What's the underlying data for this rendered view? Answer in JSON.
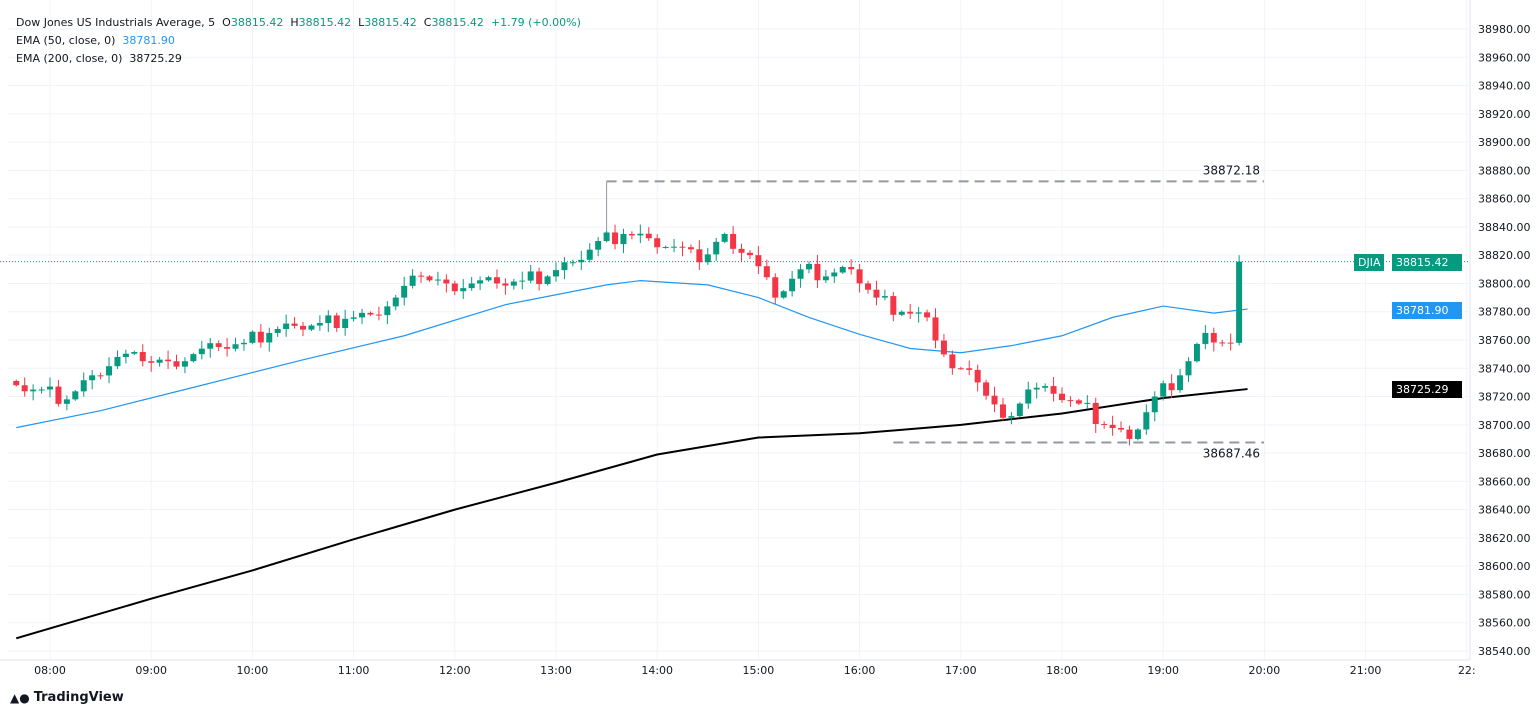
{
  "legend": {
    "title": "Dow Jones US Industrials Average, 5",
    "o_label": "O",
    "o": "38815.42",
    "h_label": "H",
    "h": "38815.42",
    "l_label": "L",
    "l": "38815.42",
    "c_label": "C",
    "c": "38815.42",
    "change": "+1.79 (+0.00%)",
    "ema50_label": "EMA (50, close, 0)",
    "ema50": "38781.90",
    "ema200_label": "EMA (200, close, 0)",
    "ema200": "38725.29"
  },
  "tags": {
    "symbol": "DJIA",
    "price": "38815.42",
    "ema50": "38781.90",
    "ema200": "38725.29"
  },
  "levels": {
    "high": "38872.18",
    "low": "38687.46"
  },
  "brand": "TradingView",
  "colors": {
    "up": "#089981",
    "down": "#f23645",
    "ema50": "#2196f3",
    "ema200": "#000000"
  },
  "chart_data": {
    "type": "candlestick",
    "title": "Dow Jones US Industrials Average, 5",
    "ylim": [
      38540,
      38980
    ],
    "yticks": [
      38540,
      38560,
      38580,
      38600,
      38620,
      38640,
      38660,
      38680,
      38700,
      38720,
      38740,
      38760,
      38780,
      38800,
      38820,
      38840,
      38860,
      38880,
      38900,
      38920,
      38940,
      38960,
      38980
    ],
    "xticks": [
      "08:00",
      "09:00",
      "10:00",
      "11:00",
      "12:00",
      "13:00",
      "14:00",
      "15:00",
      "16:00",
      "17:00",
      "18:00",
      "19:00",
      "20:00",
      "21:00",
      "22:"
    ],
    "close_anchors_15min": {
      "start": "07:40",
      "values": [
        38728,
        38725,
        38718,
        38735,
        38748,
        38745,
        38745,
        38750,
        38755,
        38758,
        38765,
        38770,
        38772,
        38775,
        38778,
        38790,
        38805,
        38800,
        38800,
        38800,
        38802,
        38805,
        38815,
        38830,
        38835,
        38832,
        38826,
        38815,
        38835,
        38820,
        38790,
        38810,
        38805,
        38810,
        38790,
        38780,
        38776,
        38740,
        38730,
        38705,
        38725,
        38722,
        38715,
        38700,
        38690,
        38720,
        38735,
        38765,
        38758,
        38778,
        38800,
        38810,
        38818,
        38850,
        38840,
        38810,
        38790,
        38768,
        38766,
        38772,
        38800,
        38815.42
      ]
    },
    "ema50": {
      "times": [
        "07:40",
        "08:30",
        "09:30",
        "10:30",
        "11:30",
        "12:30",
        "13:30",
        "13:50",
        "14:30",
        "15:00",
        "15:30",
        "16:00",
        "16:30",
        "17:00",
        "17:30",
        "18:00",
        "18:30",
        "19:00",
        "19:30",
        "19:50"
      ],
      "values": [
        38698,
        38710,
        38728,
        38746,
        38763,
        38785,
        38799,
        38802,
        38799,
        38790,
        38776,
        38764,
        38754,
        38751,
        38756,
        38763,
        38776,
        38784,
        38779,
        38781.9
      ]
    },
    "ema200": {
      "times": [
        "07:40",
        "09:00",
        "10:00",
        "11:00",
        "12:00",
        "13:00",
        "14:00",
        "15:00",
        "16:00",
        "17:00",
        "18:00",
        "19:00",
        "19:50"
      ],
      "values": [
        38549,
        38577,
        38597,
        38619,
        38640,
        38659,
        38679,
        38691,
        38694,
        38700,
        38708,
        38719,
        38725.29
      ]
    },
    "hlines": [
      {
        "value": 38872.18,
        "from": "13:30"
      },
      {
        "value": 38687.46,
        "from": "16:20"
      }
    ]
  }
}
